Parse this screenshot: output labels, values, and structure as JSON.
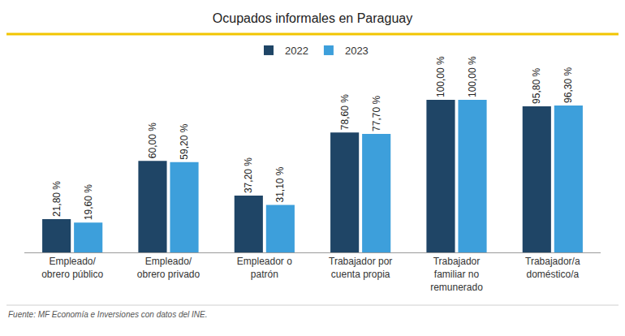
{
  "chart_data": {
    "type": "bar",
    "title": "Ocupados informales en Paraguay",
    "source": "Fuente: MF Economía e Inversiones con datos del INE.",
    "categories": [
      "Empleado/\nobrero público",
      "Empleado/\nobrero privado",
      "Empleador o\npatrón",
      "Trabajador por\ncuenta propia",
      "Trabajador\nfamiliar no\nremunerado",
      "Trabajador/a\ndoméstico/a"
    ],
    "series": [
      {
        "name": "2022",
        "color": "#1f4566",
        "values": [
          21.8,
          60.0,
          37.2,
          78.6,
          100.0,
          95.8
        ],
        "value_labels": [
          "21,80 %",
          "60,00 %",
          "37,20 %",
          "78,60 %",
          "100,00 %",
          "95,80 %"
        ]
      },
      {
        "name": "2023",
        "color": "#3d9fdb",
        "values": [
          19.6,
          59.2,
          31.1,
          77.7,
          100.0,
          96.3
        ],
        "value_labels": [
          "19,60 %",
          "59,20 %",
          "31,10 %",
          "77,70 %",
          "100,00 %",
          "96,30 %"
        ]
      }
    ],
    "ylim": [
      0,
      100
    ],
    "grid": false,
    "legend": "top",
    "data_labels": true,
    "tick_labels": "x"
  }
}
